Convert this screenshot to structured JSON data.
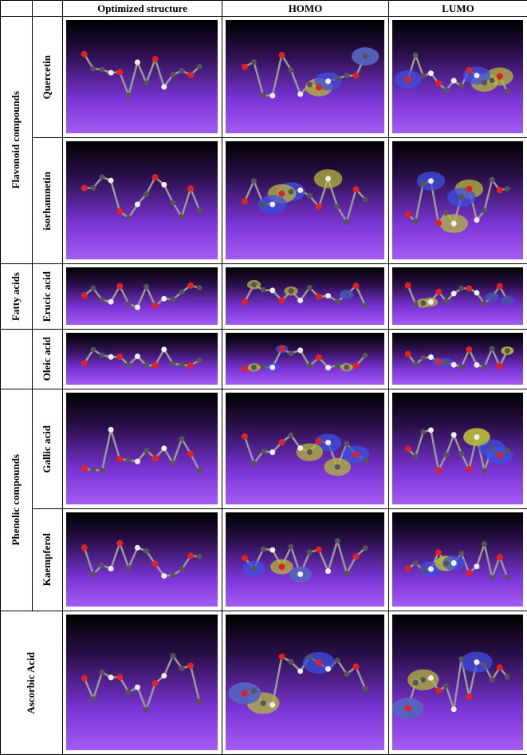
{
  "table": {
    "header": [
      "Optimized structure",
      "HOMO",
      "LUMO"
    ],
    "groups": [
      "Flavonoid compounds",
      "Fatty acids",
      "Phenolic compounds",
      "Ascorbic Acid"
    ],
    "rows": [
      "Quercetin",
      "isorhamnetin",
      "Erucic acid",
      "Oleic acid",
      "Gallic acid",
      "Kaempferol"
    ]
  }
}
